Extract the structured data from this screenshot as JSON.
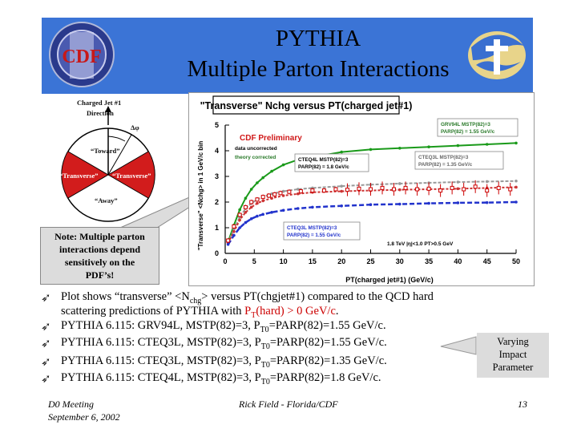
{
  "title": {
    "line1": "PYTHIA",
    "line2": "Multiple Parton Interactions"
  },
  "logos": {
    "left": "CDF logo",
    "right": "Tevatron logo",
    "left_letters": "CDF"
  },
  "diagram": {
    "label_top_1": "Charged Jet #1",
    "label_top_2": "Direction",
    "delta_phi": "Δφ",
    "toward": "“Toward”",
    "transverse_left": "“Transverse”",
    "transverse_right": "“Transverse”",
    "away": "“Away”"
  },
  "note": {
    "line1": "Note: Multiple parton",
    "line2": "interactions depend",
    "line3": "sensitively on the",
    "line4": "PDF’s!"
  },
  "chart_data": {
    "type": "line",
    "title": "\"Transverse\" Nchg versus PT(charged jet#1)",
    "xlabel": "PT(charged jet#1)  (GeV/c)",
    "ylabel": "\"Transverse\" <Nchg> in 1 GeV/c bin",
    "xlim": [
      0,
      50
    ],
    "ylim": [
      0,
      5
    ],
    "xticks": [
      "0",
      "5",
      "10",
      "15",
      "20",
      "25",
      "30",
      "35",
      "40",
      "45",
      "50"
    ],
    "yticks": [
      "0",
      "1",
      "2",
      "3",
      "4",
      "5"
    ],
    "annotations": {
      "preliminary": "CDF Preliminary",
      "uncorrected": "data uncorrected",
      "corrected": "theory corrected",
      "cuts": "1.8 TeV |η|<1.0 PT>0.5 GeV"
    },
    "series": [
      {
        "name": "GRV94L MSTP(82)=3 PARP(82) = 1.55 GeV/c",
        "color": "#1a9a1a",
        "x": [
          0.5,
          1.5,
          2.5,
          3.5,
          4.5,
          5.5,
          6.5,
          8,
          10,
          12.5,
          15,
          20,
          25,
          30,
          35,
          40,
          45,
          50
        ],
        "y": [
          0.45,
          1.1,
          1.7,
          2.15,
          2.5,
          2.75,
          2.95,
          3.2,
          3.45,
          3.65,
          3.75,
          3.95,
          4.05,
          4.1,
          4.15,
          4.2,
          4.25,
          4.3
        ]
      },
      {
        "name": "CTEQ3L MSTP(82)=3 PARP(82) = 1.35 GeV/c",
        "color": "#999999",
        "x": [
          0.5,
          1.5,
          2.5,
          3.5,
          4.5,
          5.5,
          6.5,
          8,
          10,
          12.5,
          15,
          20,
          25,
          30,
          35,
          40,
          45,
          50
        ],
        "y": [
          0.42,
          0.95,
          1.4,
          1.75,
          1.95,
          2.1,
          2.2,
          2.32,
          2.42,
          2.5,
          2.55,
          2.62,
          2.68,
          2.72,
          2.75,
          2.78,
          2.8,
          2.82
        ]
      },
      {
        "name": "CTEQ4L MSTP(82)=3 PARP(82) = 1.8 GeV/c",
        "color": "#cc3333",
        "x": [
          0.5,
          1.5,
          2.5,
          3.5,
          4.5,
          5.5,
          6.5,
          8,
          10,
          12.5,
          15,
          20,
          25,
          30,
          35,
          40,
          45,
          50
        ],
        "y": [
          0.4,
          0.85,
          1.3,
          1.6,
          1.8,
          1.95,
          2.05,
          2.15,
          2.25,
          2.32,
          2.38,
          2.42,
          2.45,
          2.48,
          2.5,
          2.52,
          2.55,
          2.58
        ]
      },
      {
        "name": "CTEQ3L MSTP(82)=3 PARP(82) = 1.55 GeV/c",
        "color": "#2233cc",
        "x": [
          0.5,
          1.5,
          2.5,
          3.5,
          4.5,
          5.5,
          6.5,
          8,
          10,
          12.5,
          15,
          20,
          25,
          30,
          35,
          40,
          45,
          50
        ],
        "y": [
          0.35,
          0.7,
          1.0,
          1.2,
          1.35,
          1.45,
          1.52,
          1.6,
          1.68,
          1.75,
          1.8,
          1.85,
          1.9,
          1.92,
          1.95,
          1.97,
          1.98,
          2.0
        ]
      },
      {
        "name": "CDF data",
        "color": "#cc0000",
        "x": [
          0.5,
          1.5,
          2.5,
          3.5,
          4.5,
          5.5,
          6.5,
          7.5,
          8.5,
          9.5,
          11,
          13,
          15,
          17,
          19,
          21,
          23,
          25,
          27,
          29,
          31,
          33,
          35,
          37,
          39,
          41,
          43,
          45,
          47,
          49
        ],
        "y": [
          0.5,
          1.05,
          1.5,
          1.8,
          2.0,
          2.1,
          2.2,
          2.25,
          2.3,
          2.35,
          2.4,
          2.42,
          2.45,
          2.45,
          2.5,
          2.48,
          2.52,
          2.5,
          2.55,
          2.5,
          2.55,
          2.5,
          2.52,
          2.45,
          2.55,
          2.5,
          2.6,
          2.45,
          2.55,
          2.5
        ]
      }
    ]
  },
  "bullets": {
    "b1_pre": "Plot shows “transverse” <N",
    "b1_sub": "chg",
    "b1_post": "> versus PT(chgjet#1) compared to the QCD hard",
    "b1_line2_pre": "scattering predictions of PYTHIA with ",
    "b1_pt": "P",
    "b1_pt_sub": "T",
    "b1_pt_post": "(hard) > 0 GeV/c",
    "b1_end": ".",
    "b2_pre": "PYTHIA 6.115: GRV94L, MSTP(82)=3, P",
    "b2_sub": "T0",
    "b2_post": "=PARP(82)=1.55 GeV/c.",
    "b3_pre": "PYTHIA 6.115: CTEQ3L, MSTP(82)=3, P",
    "b3_sub": "T0",
    "b3_post": "=PARP(82)=1.55 GeV/c.",
    "b4_pre": "PYTHIA 6.115: CTEQ3L, MSTP(82)=3, P",
    "b4_sub": "T0",
    "b4_post": "=PARP(82)=1.35 GeV/c.",
    "b5_pre": "PYTHIA 6.115: CTEQ4L, MSTP(82)=3, P",
    "b5_sub": "T0",
    "b5_post": "=PARP(82)=1.8 GeV/c."
  },
  "varying": {
    "line1": "Varying",
    "line2": "Impact",
    "line3": "Parameter"
  },
  "footer": {
    "meeting": "D0 Meeting",
    "date": "September 6, 2002",
    "author": "Rick Field - Florida/CDF",
    "page": "13"
  }
}
